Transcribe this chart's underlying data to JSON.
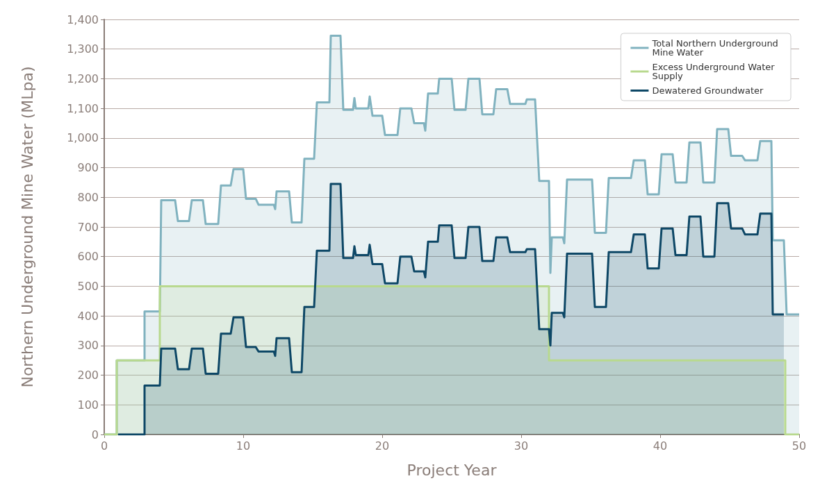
{
  "chart_data": {
    "type": "area",
    "xlabel": "Project Year",
    "ylabel": "Northern Underground Mine Water (MLpa)",
    "xlim": [
      0,
      50
    ],
    "xticks": [
      0,
      10,
      20,
      30,
      40,
      50
    ],
    "ylim": [
      0,
      1400
    ],
    "yticks": [
      {
        "value": 0,
        "label": "0"
      },
      {
        "value": 100,
        "label": "100"
      },
      {
        "value": 200,
        "label": "200"
      },
      {
        "value": 300,
        "label": "300"
      },
      {
        "value": 400,
        "label": "400"
      },
      {
        "value": 500,
        "label": "500"
      },
      {
        "value": 600,
        "label": "600"
      },
      {
        "value": 700,
        "label": "700"
      },
      {
        "value": 800,
        "label": "800"
      },
      {
        "value": 900,
        "label": "900"
      },
      {
        "value": 1000,
        "label": "1,000"
      },
      {
        "value": 1100,
        "label": "1,100"
      },
      {
        "value": 1200,
        "label": "1,200"
      },
      {
        "value": 1300,
        "label": "1,300"
      },
      {
        "value": 1400,
        "label": "1,400"
      }
    ],
    "grid": "y",
    "legend": "top right",
    "marker": "none",
    "line_style": "solid",
    "series": [
      {
        "name": "Total Northern Underground Mine Water",
        "color": "#80b2bf",
        "x": [
          0,
          0.9,
          0.9,
          2.9,
          2.9,
          4.0,
          4.1,
          5.1,
          5.3,
          6.1,
          6.3,
          7.1,
          7.3,
          8.2,
          8.4,
          9.1,
          9.3,
          10.0,
          10.2,
          10.9,
          11.1,
          12.2,
          12.3,
          12.4,
          13.3,
          13.5,
          14.2,
          14.4,
          15.1,
          15.3,
          16.2,
          16.3,
          17.0,
          17.2,
          17.9,
          18.0,
          18.1,
          19.0,
          19.1,
          19.3,
          20.0,
          20.2,
          21.1,
          21.3,
          22.1,
          22.3,
          23.0,
          23.1,
          23.3,
          24.0,
          24.1,
          25.0,
          25.2,
          26.0,
          26.2,
          27.0,
          27.2,
          28.0,
          28.2,
          29.0,
          29.2,
          30.3,
          30.4,
          31.0,
          31.3,
          32.0,
          32.1,
          32.2,
          33.0,
          33.1,
          33.3,
          35.1,
          35.3,
          36.1,
          36.3,
          37.9,
          38.1,
          38.9,
          39.1,
          39.9,
          40.1,
          40.9,
          41.1,
          41.9,
          42.1,
          42.9,
          43.1,
          43.9,
          44.1,
          44.9,
          45.1,
          45.9,
          46.1,
          47.0,
          47.2,
          48.0,
          48.1,
          48.9,
          49.1,
          50
        ],
        "values": [
          0,
          0,
          250,
          250,
          415,
          415,
          790,
          790,
          720,
          720,
          790,
          790,
          710,
          710,
          840,
          840,
          895,
          895,
          795,
          795,
          775,
          775,
          760,
          820,
          820,
          715,
          715,
          930,
          930,
          1120,
          1120,
          1345,
          1345,
          1095,
          1095,
          1135,
          1100,
          1100,
          1140,
          1075,
          1075,
          1010,
          1010,
          1100,
          1100,
          1050,
          1050,
          1025,
          1150,
          1150,
          1200,
          1200,
          1095,
          1095,
          1200,
          1200,
          1080,
          1080,
          1165,
          1165,
          1115,
          1115,
          1130,
          1130,
          855,
          855,
          545,
          665,
          665,
          645,
          860,
          860,
          680,
          680,
          865,
          865,
          925,
          925,
          810,
          810,
          945,
          945,
          850,
          850,
          985,
          985,
          850,
          850,
          1030,
          1030,
          940,
          940,
          925,
          925,
          990,
          990,
          655,
          655,
          405,
          405
        ]
      },
      {
        "name": "Excess Underground Water Supply",
        "color": "#b8d98e",
        "x": [
          0,
          0.9,
          0.9,
          4.0,
          4.0,
          32.0,
          32.0,
          49.0,
          49.0,
          50
        ],
        "values": [
          0,
          0,
          250,
          250,
          500,
          500,
          250,
          250,
          0,
          0
        ]
      },
      {
        "name": "Dewatered Groundwater",
        "color": "#0d4766",
        "x": [
          1,
          2.9,
          2.9,
          4.0,
          4.1,
          5.1,
          5.3,
          6.1,
          6.3,
          7.1,
          7.3,
          8.2,
          8.4,
          9.1,
          9.3,
          10.0,
          10.2,
          10.9,
          11.1,
          12.2,
          12.3,
          12.4,
          13.3,
          13.5,
          14.2,
          14.4,
          15.1,
          15.3,
          16.2,
          16.3,
          17.0,
          17.2,
          17.9,
          18.0,
          18.1,
          19.0,
          19.1,
          19.3,
          20.0,
          20.2,
          21.1,
          21.3,
          22.1,
          22.3,
          23.0,
          23.1,
          23.3,
          24.0,
          24.1,
          25.0,
          25.2,
          26.0,
          26.2,
          27.0,
          27.2,
          28.0,
          28.2,
          29.0,
          29.2,
          30.3,
          30.4,
          31.0,
          31.3,
          32.0,
          32.1,
          32.2,
          33.0,
          33.1,
          33.3,
          35.1,
          35.3,
          36.1,
          36.3,
          37.9,
          38.1,
          38.9,
          39.1,
          39.9,
          40.1,
          40.9,
          41.1,
          41.9,
          42.1,
          42.9,
          43.1,
          43.9,
          44.1,
          44.9,
          45.1,
          45.9,
          46.1,
          47.0,
          47.2,
          48.0,
          48.1,
          48.9
        ],
        "values": [
          0,
          0,
          165,
          165,
          290,
          290,
          220,
          220,
          290,
          290,
          205,
          205,
          340,
          340,
          395,
          395,
          295,
          295,
          280,
          280,
          265,
          325,
          325,
          210,
          210,
          430,
          430,
          620,
          620,
          845,
          845,
          595,
          595,
          635,
          605,
          605,
          640,
          575,
          575,
          510,
          510,
          600,
          600,
          550,
          550,
          530,
          650,
          650,
          705,
          705,
          595,
          595,
          700,
          700,
          585,
          585,
          665,
          665,
          615,
          615,
          625,
          625,
          355,
          355,
          300,
          410,
          410,
          395,
          610,
          610,
          430,
          430,
          615,
          615,
          675,
          675,
          560,
          560,
          695,
          695,
          605,
          605,
          735,
          735,
          600,
          600,
          780,
          780,
          695,
          695,
          675,
          675,
          745,
          745,
          405,
          405
        ]
      }
    ]
  }
}
